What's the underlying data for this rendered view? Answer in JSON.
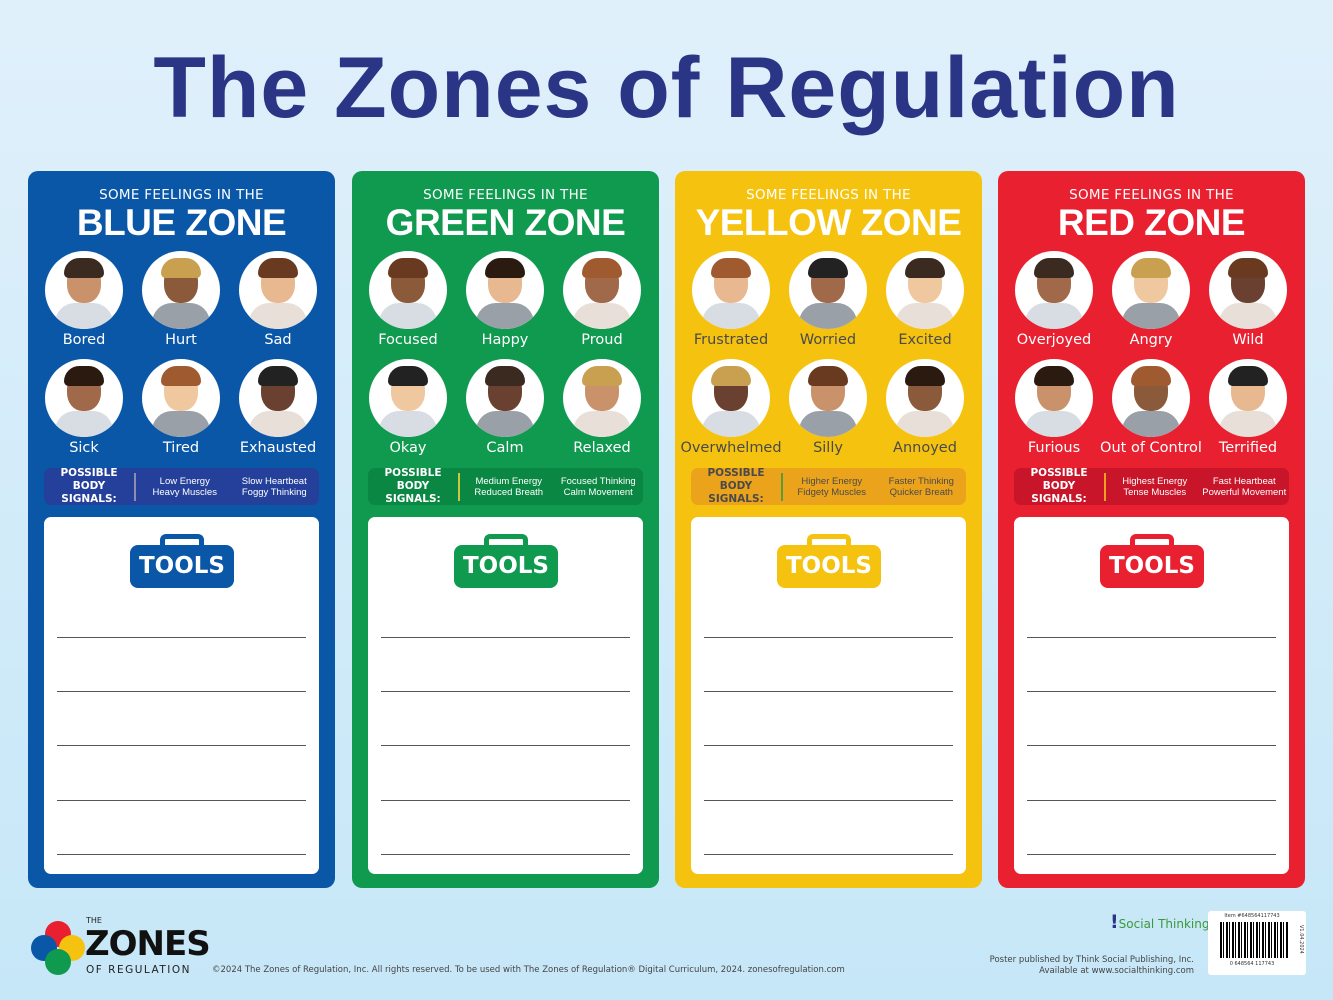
{
  "title": "The Zones of Regulation",
  "colors": {
    "blue": "#0a57a8",
    "green": "#0f9a4f",
    "yellow": "#f5c30f",
    "red": "#e82030",
    "title": "#2a3586"
  },
  "zones": [
    {
      "subtitle": "SOME FEELINGS IN THE",
      "name": "BLUE ZONE",
      "color": "#0a57a8",
      "signal_bg": "#25409a",
      "divider": "#8a8fb0",
      "tool_color": "#0a57a8",
      "text_color": "#ffffff",
      "feelings": [
        "Bored",
        "Hurt",
        "Sad",
        "Sick",
        "Tired",
        "Exhausted"
      ],
      "signals_label": "POSSIBLE BODY SIGNALS:",
      "signals": [
        [
          "Low Energy",
          "Heavy Muscles"
        ],
        [
          "Slow Heartbeat",
          "Foggy Thinking"
        ]
      ],
      "tools_label": "TOOLS"
    },
    {
      "subtitle": "SOME FEELINGS IN THE",
      "name": "GREEN ZONE",
      "color": "#0f9a4f",
      "signal_bg": "#0b8744",
      "divider": "#c9c640",
      "tool_color": "#0f9a4f",
      "text_color": "#ffffff",
      "feelings": [
        "Focused",
        "Happy",
        "Proud",
        "Okay",
        "Calm",
        "Relaxed"
      ],
      "signals_label": "POSSIBLE BODY SIGNALS:",
      "signals": [
        [
          "Medium Energy",
          "Reduced Breath"
        ],
        [
          "Focused Thinking",
          "Calm Movement"
        ]
      ],
      "tools_label": "TOOLS"
    },
    {
      "subtitle": "SOME FEELINGS IN THE",
      "name": "YELLOW ZONE",
      "color": "#f5c30f",
      "signal_bg": "#eca31c",
      "divider": "#5e9a3a",
      "tool_color": "#f5c30f",
      "text_color": "#4a4a4a",
      "feelings": [
        "Frustrated",
        "Worried",
        "Excited",
        "Overwhelmed",
        "Silly",
        "Annoyed"
      ],
      "signals_label": "POSSIBLE BODY SIGNALS:",
      "signals": [
        [
          "Higher Energy",
          "Fidgety Muscles"
        ],
        [
          "Faster Thinking",
          "Quicker Breath"
        ]
      ],
      "tools_label": "TOOLS"
    },
    {
      "subtitle": "SOME FEELINGS IN THE",
      "name": "RED ZONE",
      "color": "#e82030",
      "signal_bg": "#c8152a",
      "divider": "#f0a020",
      "tool_color": "#e82030",
      "text_color": "#ffffff",
      "feelings": [
        "Overjoyed",
        "Angry",
        "Wild",
        "Furious",
        "Out of Control",
        "Terrified"
      ],
      "signals_label": "POSSIBLE BODY SIGNALS:",
      "signals": [
        [
          "Highest Energy",
          "Tense Muscles"
        ],
        [
          "Fast Heartbeat",
          "Powerful Movement"
        ]
      ],
      "tools_label": "TOOLS"
    }
  ],
  "footer": {
    "logo_small": "THE",
    "logo_big": "ZONES",
    "logo_sub": "OF REGULATION",
    "copyright": "©2024 The Zones of Regulation, Inc. All rights reserved. To be used with The Zones of Regulation® Digital Curriculum, 2024. zonesofregulation.com",
    "publisher_logo": "Social ThinkingJr.",
    "publisher_line1": "Poster published by Think Social Publishing, Inc.",
    "publisher_line2": "Available at www.socialthinking.com",
    "item": "Item #648564117743",
    "barcode_number": "0 648564 117743",
    "version": "V1.04.2024"
  }
}
